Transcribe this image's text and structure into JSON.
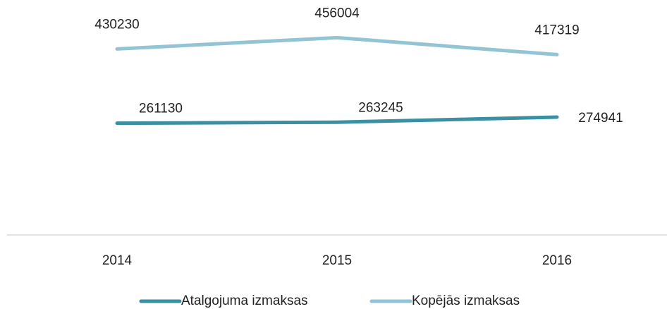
{
  "chart_data": {
    "type": "line",
    "categories": [
      "2014",
      "2015",
      "2016"
    ],
    "series": [
      {
        "name": "Atalgojuma izmaksas",
        "color": "#3a8fa3",
        "values": [
          261130,
          263245,
          274941
        ]
      },
      {
        "name": "Kopējās izmaksas",
        "color": "#93c4d3",
        "values": [
          430230,
          456004,
          417319
        ]
      }
    ],
    "ylim": [
      0,
      500000
    ],
    "legend": "bottom"
  }
}
